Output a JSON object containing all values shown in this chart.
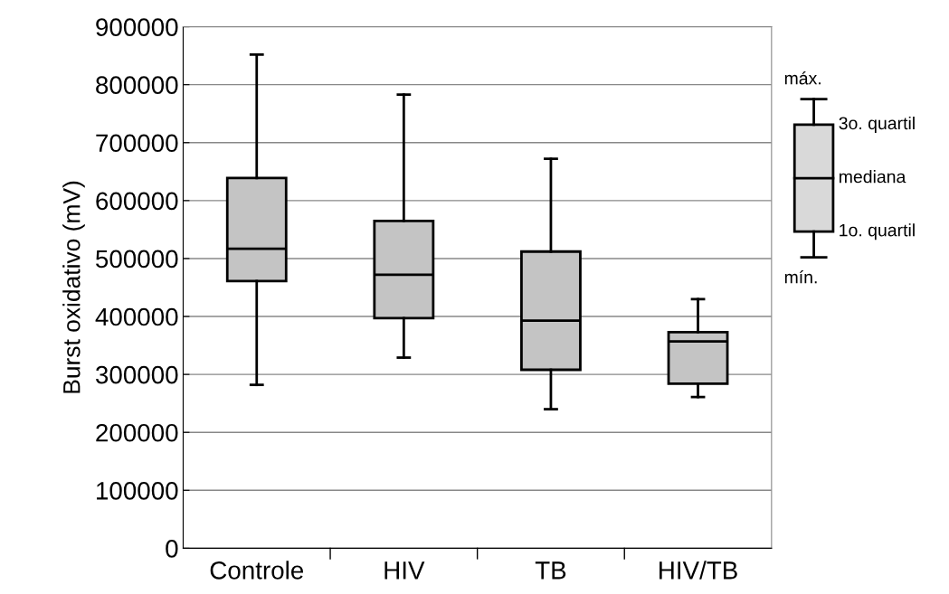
{
  "chart_data": {
    "type": "box",
    "ylabel": "Burst oxidativo (mV)",
    "categories": [
      "Controle",
      "HIV",
      "TB",
      "HIV/TB"
    ],
    "boxes": [
      {
        "low": 282000,
        "q1": 461000,
        "median": 517000,
        "q3": 639000,
        "high": 852000
      },
      {
        "low": 329000,
        "q1": 397000,
        "median": 472000,
        "q3": 565000,
        "high": 783000
      },
      {
        "low": 240000,
        "q1": 308000,
        "median": 393000,
        "q3": 512000,
        "high": 672000
      },
      {
        "low": 261000,
        "q1": 284000,
        "median": 357000,
        "q3": 373000,
        "high": 430000
      }
    ],
    "color": "#c4c4c4",
    "ylim": [
      0,
      900000
    ],
    "yticks": [
      0,
      100000,
      200000,
      300000,
      400000,
      500000,
      600000,
      700000,
      800000,
      900000
    ],
    "grid": "y",
    "annotations": [
      "máx.",
      "3o. quartil",
      "mediana",
      "1o. quartil",
      "mín."
    ]
  }
}
